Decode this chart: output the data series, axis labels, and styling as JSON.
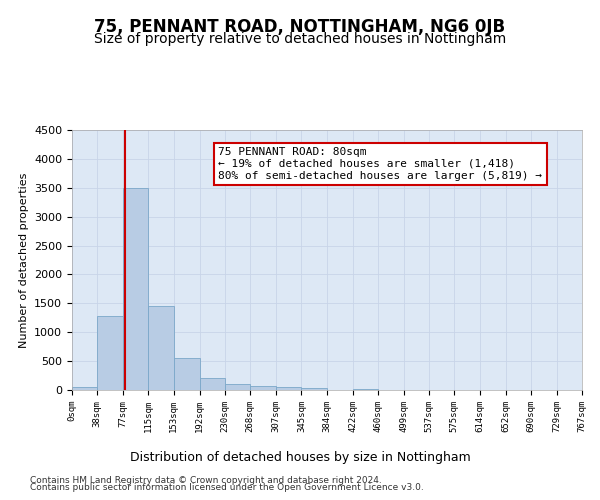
{
  "title": "75, PENNANT ROAD, NOTTINGHAM, NG6 0JB",
  "subtitle": "Size of property relative to detached houses in Nottingham",
  "xlabel": "Distribution of detached houses by size in Nottingham",
  "ylabel": "Number of detached properties",
  "bin_edges": [
    0,
    38,
    77,
    115,
    153,
    192,
    230,
    268,
    307,
    345,
    384,
    422,
    460,
    499,
    537,
    575,
    614,
    652,
    690,
    729,
    767
  ],
  "bin_labels": [
    "0sqm",
    "38sqm",
    "77sqm",
    "115sqm",
    "153sqm",
    "192sqm",
    "230sqm",
    "268sqm",
    "307sqm",
    "345sqm",
    "384sqm",
    "422sqm",
    "460sqm",
    "499sqm",
    "537sqm",
    "575sqm",
    "614sqm",
    "652sqm",
    "690sqm",
    "729sqm",
    "767sqm"
  ],
  "bar_heights": [
    50,
    1280,
    3500,
    1460,
    560,
    215,
    110,
    75,
    55,
    40,
    0,
    20,
    0,
    0,
    0,
    0,
    0,
    0,
    0,
    0
  ],
  "bar_color": "#b8cce4",
  "bar_edge_color": "#7ba7c9",
  "red_line_x": 80,
  "annotation_text": "75 PENNANT ROAD: 80sqm\n← 19% of detached houses are smaller (1,418)\n80% of semi-detached houses are larger (5,819) →",
  "annotation_box_color": "#ffffff",
  "annotation_box_edge": "#cc0000",
  "red_line_color": "#cc0000",
  "ylim": [
    0,
    4500
  ],
  "yticks": [
    0,
    500,
    1000,
    1500,
    2000,
    2500,
    3000,
    3500,
    4000,
    4500
  ],
  "background_color": "#ffffff",
  "grid_color": "#c8d4e8",
  "footer_line1": "Contains HM Land Registry data © Crown copyright and database right 2024.",
  "footer_line2": "Contains public sector information licensed under the Open Government Licence v3.0.",
  "title_fontsize": 12,
  "subtitle_fontsize": 10,
  "annotation_fontsize": 8
}
